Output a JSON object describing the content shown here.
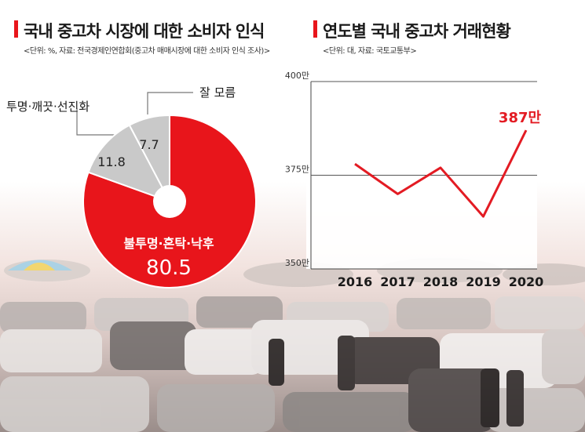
{
  "left_panel": {
    "title": "국내 중고차 시장에 대한 소비자 인식",
    "source": "<단위: %, 자료: 전국경제인연합회(중고차 매매시장에 대한 소비자 인식 조사)>"
  },
  "right_panel": {
    "title": "연도별 국내 중고차 거래현황",
    "source": "<단위: 대, 자료: 국토교통부>"
  },
  "colors": {
    "accent_red": "#e8151b",
    "slice_gray": "#c9c9c9",
    "line_red": "#e31b23"
  },
  "chart_data": [
    {
      "type": "pie",
      "title": "국내 중고차 시장에 대한 소비자 인식",
      "unit": "%",
      "slices": [
        {
          "label": "불투명·혼탁·낙후",
          "value": 80.5,
          "value_label": "80.5"
        },
        {
          "label": "투명·깨끗·선진화",
          "value": 11.8,
          "value_label": "11.8"
        },
        {
          "label": "잘 모름",
          "value": 7.7,
          "value_label": "7.7"
        }
      ]
    },
    {
      "type": "line",
      "title": "연도별 국내 중고차 거래현황",
      "unit": "대",
      "x": [
        "2016",
        "2017",
        "2018",
        "2019",
        "2020"
      ],
      "series": [
        {
          "values": [
            3780000,
            3700000,
            3770000,
            3640000,
            3870000
          ]
        }
      ],
      "ylim": [
        3500000,
        4000000
      ],
      "yticks": [
        {
          "value": 3500000,
          "label": "350만"
        },
        {
          "value": 3750000,
          "label": "375만"
        },
        {
          "value": 4000000,
          "label": "400만"
        }
      ],
      "annotations": [
        {
          "x": "2020",
          "text": "387만"
        }
      ]
    }
  ]
}
